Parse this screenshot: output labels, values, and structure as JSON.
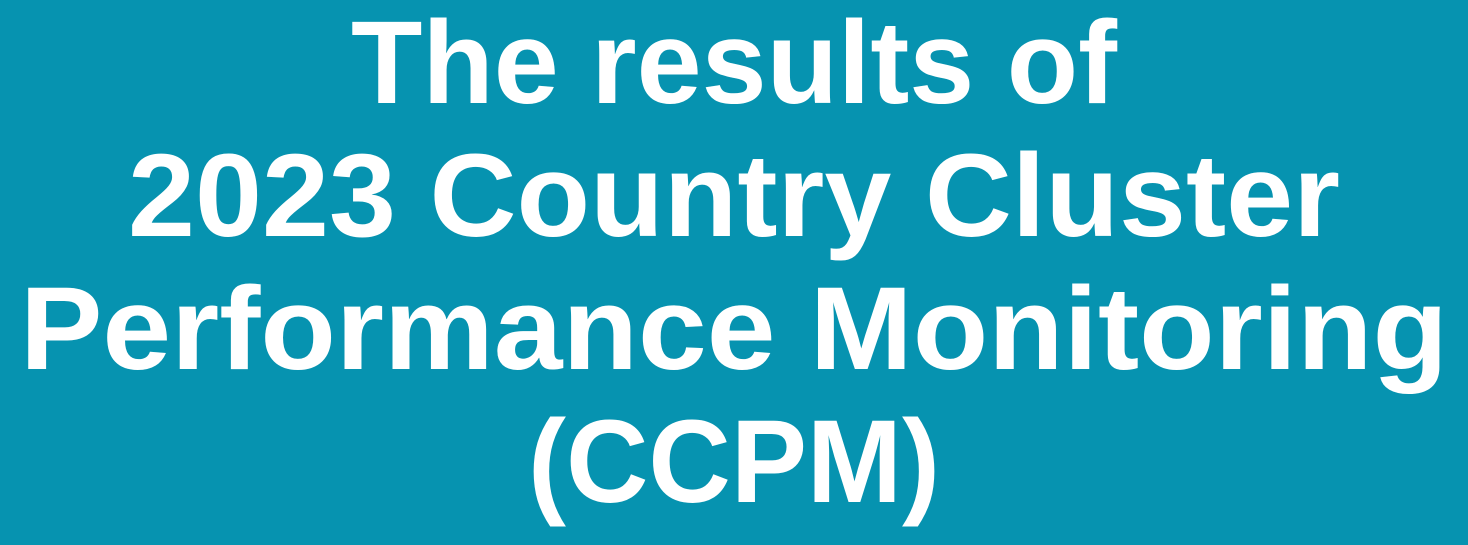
{
  "title": {
    "lines": [
      "The results of",
      "2023 Country Cluster",
      "Performance Monitoring",
      "(CCPM)"
    ]
  }
}
